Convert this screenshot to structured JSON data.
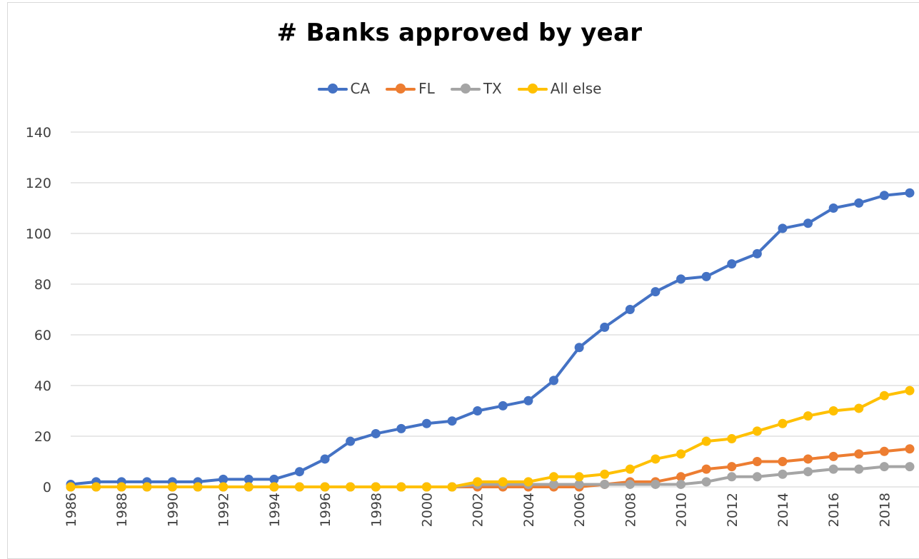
{
  "chart_data": {
    "type": "line",
    "title": "# Banks approved by year",
    "xlabel": "",
    "ylabel": "",
    "ylim": [
      0,
      140
    ],
    "yticks": [
      "0",
      "20",
      "40",
      "60",
      "80",
      "100",
      "120",
      "140"
    ],
    "x": [
      1986,
      1987,
      1988,
      1989,
      1990,
      1991,
      1992,
      1993,
      1994,
      1995,
      1996,
      1997,
      1998,
      1999,
      2000,
      2001,
      2002,
      2003,
      2004,
      2005,
      2006,
      2007,
      2008,
      2009,
      2010,
      2011,
      2012,
      2013,
      2014,
      2015,
      2016,
      2017,
      2018,
      2019
    ],
    "xtick_labels": [
      "1986",
      "1988",
      "1990",
      "1992",
      "1994",
      "1996",
      "1998",
      "2000",
      "2002",
      "2004",
      "2006",
      "2008",
      "2010",
      "2012",
      "2014",
      "2016",
      "2018"
    ],
    "grid": true,
    "legend_position": "top",
    "series": [
      {
        "name": "CA",
        "color": "#4472C4",
        "values": [
          1,
          2,
          2,
          2,
          2,
          2,
          3,
          3,
          3,
          6,
          11,
          18,
          21,
          23,
          25,
          26,
          30,
          32,
          34,
          42,
          55,
          63,
          70,
          77,
          82,
          83,
          88,
          92,
          102,
          104,
          110,
          112,
          115,
          116
        ]
      },
      {
        "name": "FL",
        "color": "#ED7D31",
        "values": [
          0,
          0,
          0,
          0,
          0,
          0,
          0,
          0,
          0,
          0,
          0,
          0,
          0,
          0,
          0,
          0,
          0,
          0,
          0,
          0,
          0,
          1,
          2,
          2,
          4,
          7,
          8,
          10,
          10,
          11,
          12,
          13,
          14,
          15
        ]
      },
      {
        "name": "TX",
        "color": "#A5A5A5",
        "values": [
          0,
          0,
          0,
          0,
          0,
          0,
          0,
          0,
          0,
          0,
          0,
          0,
          0,
          0,
          0,
          0,
          1,
          1,
          1,
          1,
          1,
          1,
          1,
          1,
          1,
          2,
          4,
          4,
          5,
          6,
          7,
          7,
          8,
          8
        ]
      },
      {
        "name": "All else",
        "color": "#FFC000",
        "values": [
          0,
          0,
          0,
          0,
          0,
          0,
          0,
          0,
          0,
          0,
          0,
          0,
          0,
          0,
          0,
          0,
          2,
          2,
          2,
          4,
          4,
          5,
          7,
          11,
          13,
          18,
          19,
          22,
          25,
          28,
          30,
          31,
          36,
          38
        ]
      }
    ]
  }
}
